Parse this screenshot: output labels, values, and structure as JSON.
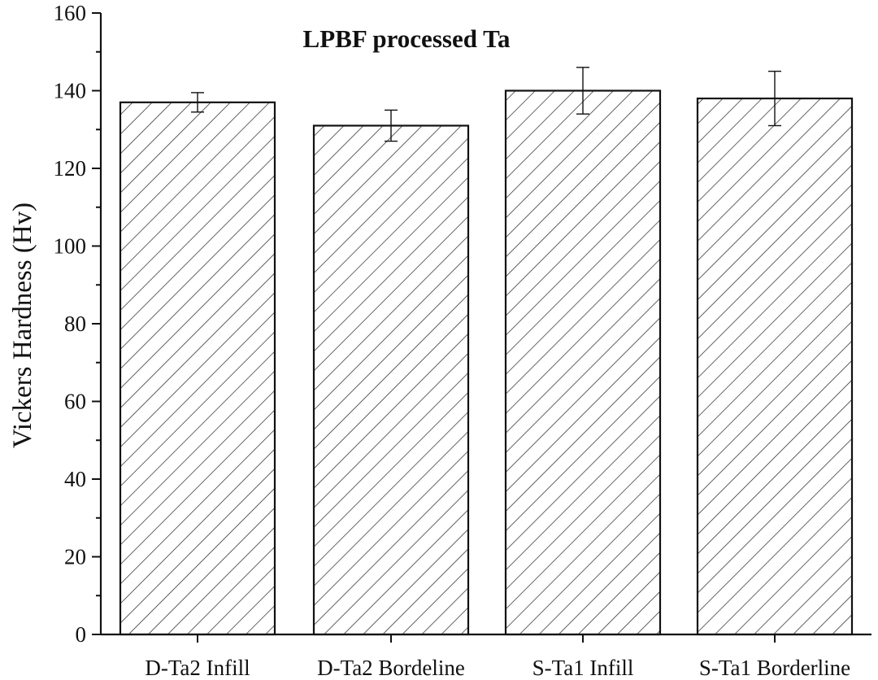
{
  "chart_data": {
    "type": "bar",
    "title": "LPBF processed Ta",
    "xlabel": "",
    "ylabel": "Vickers Hardness (Hv)",
    "categories": [
      "D-Ta2 Infill",
      "D-Ta2 Bordeline",
      "S-Ta1 Infill",
      "S-Ta1 Borderline"
    ],
    "values": [
      137,
      131,
      140,
      138
    ],
    "error_upper": [
      139.5,
      135,
      146,
      145
    ],
    "error_lower": [
      134.5,
      127,
      134,
      131
    ],
    "ylim": [
      0,
      160
    ],
    "yticks": [
      0,
      20,
      40,
      60,
      80,
      100,
      120,
      140,
      160
    ],
    "grid": false,
    "legend": "none",
    "bar_fill": "hatched diagonal lines",
    "colors": {
      "bar_stroke": "#111111",
      "hatch": "#222222",
      "axis": "#111111"
    }
  }
}
